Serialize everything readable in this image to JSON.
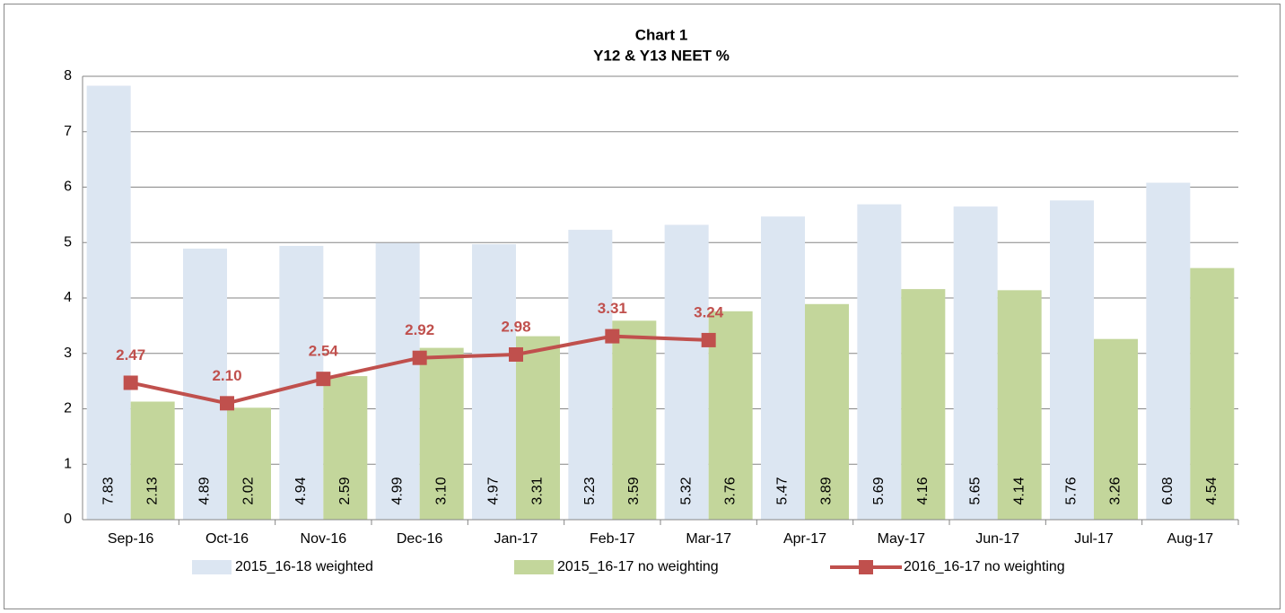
{
  "chart_data": {
    "type": "bar-line",
    "title": "Chart 1",
    "subtitle": "Y12 & Y13 NEET %",
    "categories": [
      "Sep-16",
      "Oct-16",
      "Nov-16",
      "Dec-16",
      "Jan-17",
      "Feb-17",
      "Mar-17",
      "Apr-17",
      "May-17",
      "Jun-17",
      "Jul-17",
      "Aug-17"
    ],
    "series": [
      {
        "name": "2015_16-18 weighted",
        "type": "bar",
        "color": "#dce6f2",
        "values": [
          7.83,
          4.89,
          4.94,
          4.99,
          4.97,
          5.23,
          5.32,
          5.47,
          5.69,
          5.65,
          5.76,
          6.08
        ],
        "value_labels": [
          "7.83",
          "4.89",
          "4.94",
          "4.99",
          "4.97",
          "5.23",
          "5.32",
          "5.47",
          "5.69",
          "5.65",
          "5.76",
          "6.08"
        ]
      },
      {
        "name": "2015_16-17 no weighting",
        "type": "bar",
        "color": "#c3d69b",
        "values": [
          2.13,
          2.02,
          2.59,
          3.1,
          3.31,
          3.59,
          3.76,
          3.89,
          4.16,
          4.14,
          3.26,
          4.54
        ],
        "value_labels": [
          "2.13",
          "2.02",
          "2.59",
          "3.10",
          "3.31",
          "3.59",
          "3.76",
          "3.89",
          "4.16",
          "4.14",
          "3.26",
          "4.54"
        ]
      },
      {
        "name": "2016_16-17 no weighting",
        "type": "line",
        "color": "#c0504d",
        "values": [
          2.47,
          2.1,
          2.54,
          2.92,
          2.98,
          3.31,
          3.24,
          null,
          null,
          null,
          null,
          null
        ],
        "value_labels": [
          "2.47",
          "2.10",
          "2.54",
          "2.92",
          "2.98",
          "3.31",
          "3.24",
          null,
          null,
          null,
          null,
          null
        ]
      }
    ],
    "ylim": [
      0,
      8
    ],
    "yticks": [
      0,
      1,
      2,
      3,
      4,
      5,
      6,
      7,
      8
    ],
    "grid": true,
    "legend": "bottom"
  }
}
